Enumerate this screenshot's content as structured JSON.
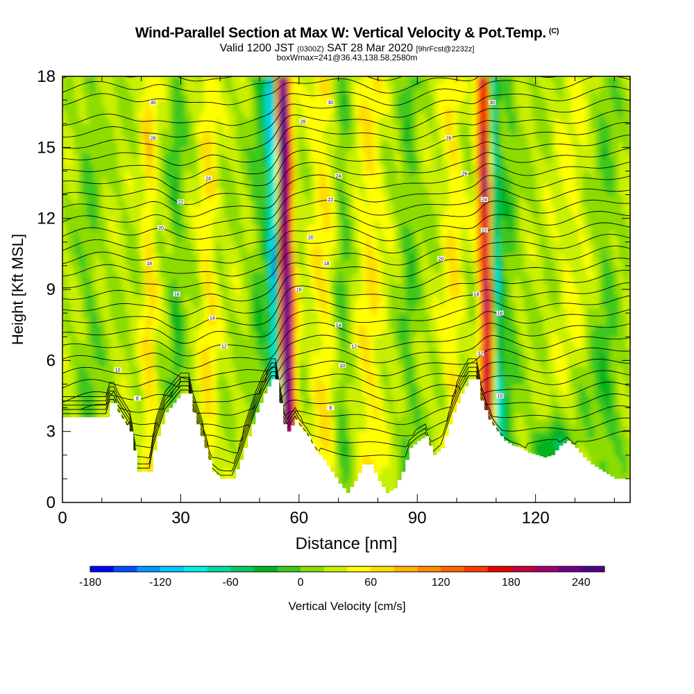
{
  "header": {
    "title": "Wind-Parallel Section at Max W: Vertical Velocity & Pot.Temp.",
    "title_tag": "(C)",
    "valid_prefix": "Valid 1200 JST",
    "valid_utc": "(0300Z)",
    "valid_date": "SAT 28 Mar 2020",
    "forecast_tag": "[9hrFcst@2232z]",
    "box_info": "boxWmax=241@36.43,138.58,2580m"
  },
  "chart_data": {
    "type": "heatmap",
    "xlabel": "Distance [nm]",
    "ylabel": "Height [Kft MSL]",
    "xlim": [
      0,
      144
    ],
    "ylim": [
      0,
      18
    ],
    "x_ticks": [
      0,
      30,
      60,
      90,
      120
    ],
    "y_ticks": [
      0,
      3,
      6,
      9,
      12,
      15,
      18
    ],
    "colorbar": {
      "label": "Vertical Velocity [cm/s]",
      "min": -180,
      "max": 260,
      "step": 20,
      "tick_values": [
        -180,
        -120,
        -60,
        0,
        60,
        120,
        180,
        240
      ],
      "tick_labels": [
        "-180",
        "-120",
        "-60",
        "0",
        "60",
        "120",
        "180",
        "240"
      ],
      "colors": [
        "#0000ff",
        "#0050ff",
        "#0096ff",
        "#00c8ff",
        "#00f0e6",
        "#00dca0",
        "#00c864",
        "#00b41e",
        "#3cc81e",
        "#8cdc00",
        "#c8f000",
        "#ffff00",
        "#ffdc00",
        "#ffb400",
        "#ff8c00",
        "#ff6400",
        "#ff3c00",
        "#e60000",
        "#c8003c",
        "#a0006e",
        "#6e008c",
        "#50008c"
      ]
    },
    "terrain_kft": [
      [
        0,
        3.6
      ],
      [
        11,
        3.6
      ],
      [
        12,
        4.2
      ],
      [
        13,
        4.2
      ],
      [
        14,
        3.8
      ],
      [
        17,
        3.0
      ],
      [
        18,
        2.2
      ],
      [
        19,
        1.3
      ],
      [
        22,
        1.3
      ],
      [
        23,
        2.2
      ],
      [
        24,
        2.8
      ],
      [
        26,
        3.8
      ],
      [
        28,
        4.2
      ],
      [
        30,
        4.6
      ],
      [
        32,
        4.6
      ],
      [
        33,
        3.8
      ],
      [
        35,
        2.8
      ],
      [
        37,
        1.8
      ],
      [
        38,
        1.3
      ],
      [
        40,
        1.0
      ],
      [
        43,
        1.0
      ],
      [
        45,
        1.8
      ],
      [
        47,
        2.8
      ],
      [
        49,
        3.8
      ],
      [
        51,
        4.6
      ],
      [
        53,
        5.2
      ],
      [
        54,
        5.2
      ],
      [
        55,
        4.2
      ],
      [
        56,
        3.3
      ],
      [
        57,
        3.0
      ],
      [
        59,
        3.5
      ],
      [
        60,
        3.2
      ],
      [
        62,
        2.8
      ],
      [
        64,
        2.2
      ],
      [
        66,
        1.8
      ],
      [
        68,
        1.3
      ],
      [
        70,
        0.8
      ],
      [
        72,
        0.4
      ],
      [
        74,
        0.9
      ],
      [
        76,
        1.6
      ],
      [
        78,
        1.6
      ],
      [
        80,
        0.9
      ],
      [
        82,
        0.4
      ],
      [
        84,
        0.6
      ],
      [
        86,
        1.3
      ],
      [
        88,
        2.3
      ],
      [
        90,
        2.6
      ],
      [
        92,
        2.8
      ],
      [
        93,
        2.4
      ],
      [
        94,
        2.0
      ],
      [
        96,
        2.3
      ],
      [
        97,
        2.8
      ],
      [
        99,
        3.8
      ],
      [
        101,
        4.6
      ],
      [
        103,
        5.2
      ],
      [
        105,
        5.2
      ],
      [
        106,
        4.3
      ],
      [
        108,
        3.5
      ],
      [
        110,
        3.0
      ],
      [
        112,
        2.6
      ],
      [
        114,
        2.4
      ],
      [
        116,
        2.3
      ],
      [
        118,
        2.1
      ],
      [
        120,
        2.0
      ],
      [
        122,
        1.9
      ],
      [
        124,
        2.0
      ],
      [
        126,
        2.4
      ],
      [
        128,
        2.6
      ],
      [
        130,
        2.3
      ],
      [
        132,
        1.9
      ],
      [
        134,
        1.6
      ],
      [
        136,
        1.4
      ],
      [
        138,
        1.2
      ],
      [
        140,
        1.0
      ],
      [
        142,
        1.0
      ],
      [
        144,
        1.0
      ]
    ],
    "theta_labels": [
      {
        "x": 23,
        "y": 16.9,
        "text": "30"
      },
      {
        "x": 23,
        "y": 15.4,
        "text": "28"
      },
      {
        "x": 61,
        "y": 16.1,
        "text": "28"
      },
      {
        "x": 68,
        "y": 16.9,
        "text": "30"
      },
      {
        "x": 37,
        "y": 13.7,
        "text": "24"
      },
      {
        "x": 30,
        "y": 12.7,
        "text": "22"
      },
      {
        "x": 25,
        "y": 11.6,
        "text": "20"
      },
      {
        "x": 22,
        "y": 10.1,
        "text": "18"
      },
      {
        "x": 29,
        "y": 8.8,
        "text": "16"
      },
      {
        "x": 38,
        "y": 7.8,
        "text": "14"
      },
      {
        "x": 41,
        "y": 6.6,
        "text": "12"
      },
      {
        "x": 14,
        "y": 5.6,
        "text": "10"
      },
      {
        "x": 19,
        "y": 4.4,
        "text": "8"
      },
      {
        "x": 70,
        "y": 13.8,
        "text": "24"
      },
      {
        "x": 68,
        "y": 12.8,
        "text": "22"
      },
      {
        "x": 63,
        "y": 11.2,
        "text": "20"
      },
      {
        "x": 67,
        "y": 10.1,
        "text": "18"
      },
      {
        "x": 60,
        "y": 9.0,
        "text": "16"
      },
      {
        "x": 70,
        "y": 7.5,
        "text": "14"
      },
      {
        "x": 74,
        "y": 6.6,
        "text": "12"
      },
      {
        "x": 71,
        "y": 5.8,
        "text": "10"
      },
      {
        "x": 68,
        "y": 4.0,
        "text": "8"
      },
      {
        "x": 98,
        "y": 15.4,
        "text": "28"
      },
      {
        "x": 102,
        "y": 13.9,
        "text": "26"
      },
      {
        "x": 107,
        "y": 12.8,
        "text": "24"
      },
      {
        "x": 107,
        "y": 11.5,
        "text": "22"
      },
      {
        "x": 96,
        "y": 10.3,
        "text": "20"
      },
      {
        "x": 105,
        "y": 8.8,
        "text": "18"
      },
      {
        "x": 111,
        "y": 8.0,
        "text": "16"
      },
      {
        "x": 106,
        "y": 6.3,
        "text": "12"
      },
      {
        "x": 111,
        "y": 4.5,
        "text": "10"
      },
      {
        "x": 109,
        "y": 16.9,
        "text": "30"
      }
    ]
  }
}
